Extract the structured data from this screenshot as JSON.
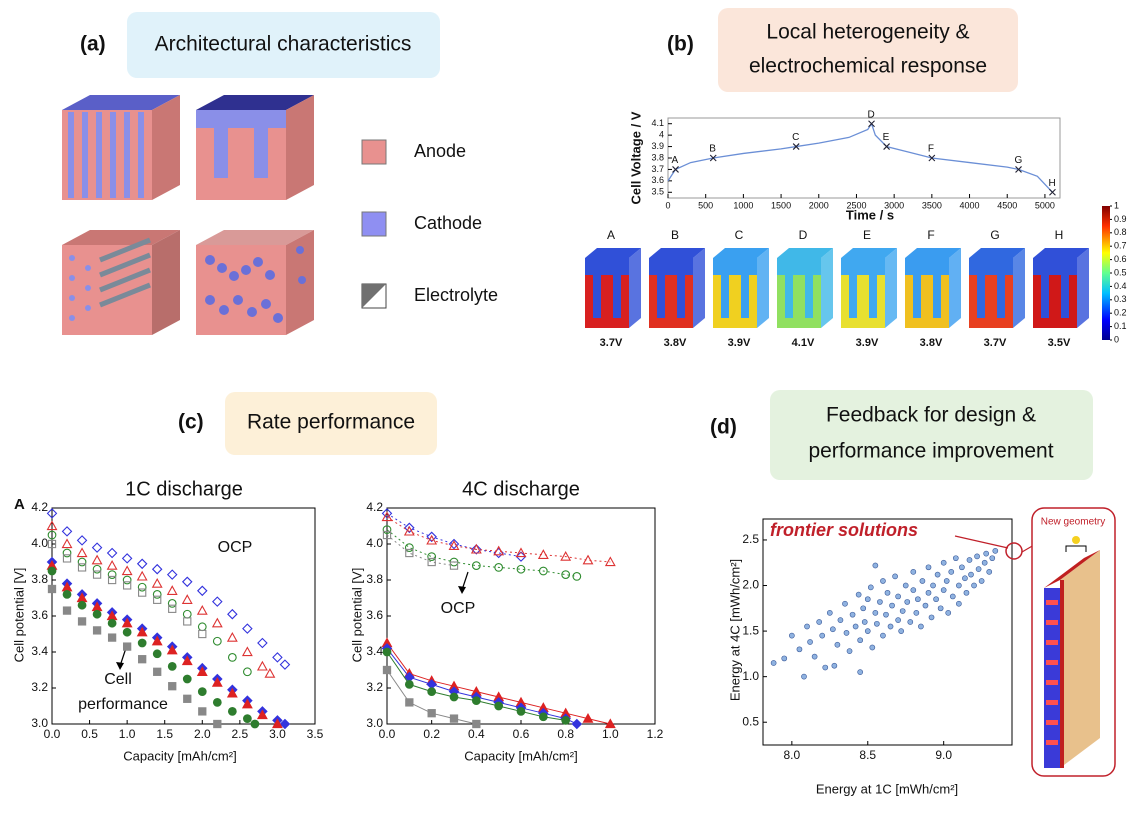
{
  "panels": [
    {
      "label": "(a)",
      "heading": [
        "Architectural characteristics"
      ]
    },
    {
      "label": "(b)",
      "heading": [
        "Local heterogeneity &",
        "electrochemical response"
      ]
    },
    {
      "label": "(c)",
      "heading": [
        "Rate performance"
      ]
    },
    {
      "label": "(d)",
      "heading": [
        "Feedback for design &",
        "performance improvement"
      ]
    }
  ],
  "legend": [
    {
      "name": "Anode",
      "color": "#e8918f"
    },
    {
      "name": "Cathode",
      "color": "#8f8ff2"
    },
    {
      "name": "Electrolyte",
      "color": "#707070"
    }
  ],
  "snapshots": {
    "labels": [
      "A",
      "B",
      "C",
      "D",
      "E",
      "F",
      "G",
      "H"
    ],
    "voltages": [
      "3.7V",
      "3.8V",
      "3.9V",
      "4.1V",
      "3.9V",
      "3.8V",
      "3.7V",
      "3.5V"
    ],
    "colorbar_ticks": [
      0,
      0.1,
      0.2,
      0.3,
      0.4,
      0.5,
      0.6,
      0.7,
      0.8,
      0.9,
      1
    ]
  },
  "new_geometry": "New geometry",
  "chart_data": [
    {
      "type": "line",
      "xlabel": "Time / s",
      "ylabel": "Cell Voltage / V",
      "xlim": [
        0,
        5200
      ],
      "xticks": [
        0,
        500,
        1000,
        1500,
        2000,
        2500,
        3000,
        3500,
        4000,
        4500,
        5000
      ],
      "ylim": [
        3.45,
        4.15
      ],
      "yticks": [
        3.5,
        3.6,
        3.7,
        3.8,
        3.9,
        4,
        4.1
      ],
      "series": [
        {
          "color": "#6b8fd6",
          "x": [
            0,
            100,
            300,
            600,
            1000,
            1500,
            1700,
            2000,
            2400,
            2650,
            2700,
            2750,
            2900,
            3200,
            3500,
            4000,
            4500,
            4650,
            4900,
            5100
          ],
          "values": [
            3.6,
            3.7,
            3.76,
            3.8,
            3.84,
            3.88,
            3.9,
            3.93,
            3.98,
            4.05,
            4.1,
            4.0,
            3.9,
            3.85,
            3.8,
            3.76,
            3.72,
            3.7,
            3.64,
            3.5
          ]
        }
      ],
      "points": {
        "labels": [
          "A",
          "B",
          "C",
          "D",
          "E",
          "F",
          "G",
          "H"
        ],
        "x": [
          100,
          600,
          1700,
          2700,
          2900,
          3500,
          4650,
          5100
        ],
        "values": [
          3.7,
          3.8,
          3.9,
          4.1,
          3.9,
          3.8,
          3.7,
          3.5
        ]
      }
    },
    {
      "type": "scatter",
      "title": "1C discharge",
      "panel_letter": "A",
      "xlabel": "Capacity [mAh/cm²]",
      "ylabel": "Cell potential [V]",
      "annotations": [
        "OCP",
        "Cell",
        "performance"
      ],
      "xlim": [
        0,
        3.5
      ],
      "xticks": [
        {
          "value": 0,
          "label": "0.0"
        },
        0.5,
        {
          "value": 1,
          "label": "1.0"
        },
        1.5,
        {
          "value": 2,
          "label": "2.0"
        },
        2.5,
        {
          "value": 3,
          "label": "3.0"
        },
        3.5
      ],
      "ylim": [
        3.0,
        4.2
      ],
      "yticks": [
        {
          "value": 3,
          "label": "3.0"
        },
        3.2,
        3.4,
        3.6,
        3.8,
        {
          "value": 4,
          "label": "4.0"
        },
        4.2
      ],
      "series": [
        {
          "color": "#3333dd",
          "marker": "diamond",
          "filled": false,
          "x": [
            0,
            0.2,
            0.4,
            0.6,
            0.8,
            1.0,
            1.2,
            1.4,
            1.6,
            1.8,
            2.0,
            2.2,
            2.4,
            2.6,
            2.8,
            3.0,
            3.1
          ],
          "values": [
            4.17,
            4.07,
            4.02,
            3.98,
            3.95,
            3.92,
            3.89,
            3.86,
            3.83,
            3.79,
            3.74,
            3.68,
            3.61,
            3.53,
            3.45,
            3.37,
            3.33
          ]
        },
        {
          "color": "#dd3333",
          "marker": "triangle",
          "filled": false,
          "x": [
            0,
            0.2,
            0.4,
            0.6,
            0.8,
            1.0,
            1.2,
            1.4,
            1.6,
            1.8,
            2.0,
            2.2,
            2.4,
            2.6,
            2.8,
            2.9
          ],
          "values": [
            4.1,
            4.0,
            3.95,
            3.91,
            3.88,
            3.85,
            3.82,
            3.78,
            3.74,
            3.69,
            3.63,
            3.56,
            3.48,
            3.4,
            3.32,
            3.28
          ]
        },
        {
          "color": "#2e8b2e",
          "marker": "circle",
          "filled": false,
          "x": [
            0,
            0.2,
            0.4,
            0.6,
            0.8,
            1.0,
            1.2,
            1.4,
            1.6,
            1.8,
            2.0,
            2.2,
            2.4,
            2.6
          ],
          "values": [
            4.05,
            3.95,
            3.9,
            3.86,
            3.83,
            3.8,
            3.76,
            3.72,
            3.67,
            3.61,
            3.54,
            3.46,
            3.37,
            3.29
          ]
        },
        {
          "color": "#888888",
          "marker": "square",
          "filled": false,
          "x": [
            0,
            0.2,
            0.4,
            0.6,
            0.8,
            1.0,
            1.2,
            1.4,
            1.6,
            1.8,
            2.0
          ],
          "values": [
            4.0,
            3.92,
            3.87,
            3.83,
            3.8,
            3.77,
            3.73,
            3.69,
            3.64,
            3.57,
            3.5
          ]
        },
        {
          "color": "#3333dd",
          "marker": "diamond",
          "filled": true,
          "x": [
            0,
            0.2,
            0.4,
            0.6,
            0.8,
            1.0,
            1.2,
            1.4,
            1.6,
            1.8,
            2.0,
            2.2,
            2.4,
            2.6,
            2.8,
            3.0,
            3.1
          ],
          "values": [
            3.9,
            3.78,
            3.72,
            3.67,
            3.62,
            3.58,
            3.53,
            3.48,
            3.43,
            3.37,
            3.31,
            3.25,
            3.19,
            3.13,
            3.07,
            3.02,
            3.0
          ]
        },
        {
          "color": "#dd2222",
          "marker": "triangle",
          "filled": true,
          "x": [
            0,
            0.2,
            0.4,
            0.6,
            0.8,
            1.0,
            1.2,
            1.4,
            1.6,
            1.8,
            2.0,
            2.2,
            2.4,
            2.6,
            2.8,
            3.0
          ],
          "values": [
            3.88,
            3.76,
            3.7,
            3.65,
            3.6,
            3.56,
            3.51,
            3.46,
            3.41,
            3.35,
            3.29,
            3.23,
            3.17,
            3.11,
            3.05,
            3.0
          ]
        },
        {
          "color": "#2e7d2e",
          "marker": "circle",
          "filled": true,
          "x": [
            0,
            0.2,
            0.4,
            0.6,
            0.8,
            1.0,
            1.2,
            1.4,
            1.6,
            1.8,
            2.0,
            2.2,
            2.4,
            2.6,
            2.7
          ],
          "values": [
            3.85,
            3.72,
            3.66,
            3.61,
            3.56,
            3.51,
            3.45,
            3.39,
            3.32,
            3.25,
            3.18,
            3.12,
            3.07,
            3.03,
            3.0
          ]
        },
        {
          "color": "#888888",
          "marker": "square",
          "filled": true,
          "x": [
            0,
            0.2,
            0.4,
            0.6,
            0.8,
            1.0,
            1.2,
            1.4,
            1.6,
            1.8,
            2.0,
            2.2
          ],
          "values": [
            3.75,
            3.63,
            3.57,
            3.52,
            3.48,
            3.43,
            3.36,
            3.29,
            3.21,
            3.14,
            3.07,
            3.0
          ]
        }
      ]
    },
    {
      "type": "scatter",
      "title": "4C discharge",
      "xlabel": "Capacity [mAh/cm²]",
      "ylabel": "Cell potential [V]",
      "annotations": [
        "OCP"
      ],
      "connect": true,
      "xlim": [
        0,
        1.2
      ],
      "xticks": [
        {
          "value": 0,
          "label": "0.0"
        },
        0.2,
        0.4,
        0.6,
        0.8,
        {
          "value": 1,
          "label": "1.0"
        },
        1.2
      ],
      "ylim": [
        3.0,
        4.2
      ],
      "yticks": [
        {
          "value": 3,
          "label": "3.0"
        },
        3.2,
        3.4,
        3.6,
        3.8,
        {
          "value": 4,
          "label": "4.0"
        },
        4.2
      ],
      "series": [
        {
          "color": "#3333dd",
          "marker": "diamond",
          "filled": false,
          "x": [
            0,
            0.1,
            0.2,
            0.3,
            0.4,
            0.5,
            0.6
          ],
          "values": [
            4.17,
            4.09,
            4.04,
            4.0,
            3.97,
            3.95,
            3.93
          ]
        },
        {
          "color": "#dd3333",
          "marker": "triangle",
          "filled": false,
          "x": [
            0,
            0.1,
            0.2,
            0.3,
            0.4,
            0.5,
            0.6,
            0.7,
            0.8,
            0.9,
            1.0
          ],
          "values": [
            4.15,
            4.07,
            4.02,
            3.99,
            3.97,
            3.96,
            3.95,
            3.94,
            3.93,
            3.91,
            3.9
          ]
        },
        {
          "color": "#2e8b2e",
          "marker": "circle",
          "filled": false,
          "x": [
            0,
            0.1,
            0.2,
            0.3,
            0.4,
            0.5,
            0.6,
            0.7,
            0.8,
            0.85
          ],
          "values": [
            4.08,
            3.98,
            3.93,
            3.9,
            3.88,
            3.87,
            3.86,
            3.85,
            3.83,
            3.82
          ]
        },
        {
          "color": "#888888",
          "marker": "square",
          "filled": false,
          "x": [
            0,
            0.1,
            0.2,
            0.3
          ],
          "values": [
            4.05,
            3.95,
            3.9,
            3.88
          ]
        },
        {
          "color": "#dd2222",
          "marker": "triangle",
          "filled": true,
          "x": [
            0,
            0.1,
            0.2,
            0.3,
            0.4,
            0.5,
            0.6,
            0.7,
            0.8,
            0.9,
            1.0
          ],
          "values": [
            3.45,
            3.28,
            3.24,
            3.21,
            3.18,
            3.15,
            3.12,
            3.09,
            3.06,
            3.03,
            3.0
          ]
        },
        {
          "color": "#3333dd",
          "marker": "diamond",
          "filled": true,
          "x": [
            0,
            0.1,
            0.2,
            0.3,
            0.4,
            0.5,
            0.6,
            0.7,
            0.8,
            0.85
          ],
          "values": [
            3.42,
            3.26,
            3.22,
            3.18,
            3.15,
            3.12,
            3.09,
            3.06,
            3.03,
            3.0
          ]
        },
        {
          "color": "#2e7d2e",
          "marker": "circle",
          "filled": true,
          "x": [
            0,
            0.1,
            0.2,
            0.3,
            0.4,
            0.5,
            0.6,
            0.7,
            0.8
          ],
          "values": [
            3.4,
            3.22,
            3.18,
            3.15,
            3.13,
            3.1,
            3.07,
            3.04,
            3.02
          ]
        },
        {
          "color": "#888888",
          "marker": "square",
          "filled": true,
          "x": [
            0,
            0.1,
            0.2,
            0.3,
            0.4
          ],
          "values": [
            3.3,
            3.12,
            3.06,
            3.03,
            3.0
          ]
        }
      ]
    },
    {
      "type": "scatter",
      "xlabel": "Energy at 1C [mWh/cm²]",
      "ylabel": "Energy at 4C [mWh/cm²]",
      "annotations": [
        "frontier solutions"
      ],
      "xlim": [
        7.81,
        9.45
      ],
      "xticks": [
        {
          "value": 8,
          "label": "8.0"
        },
        8.5,
        {
          "value": 9,
          "label": "9.0"
        }
      ],
      "ylim": [
        0.25,
        2.73
      ],
      "yticks": [
        0.5,
        {
          "value": 1,
          "label": "1.0"
        },
        1.5,
        {
          "value": 2,
          "label": "2.0"
        },
        2.5
      ],
      "series": [
        {
          "color": "#8fb2e0",
          "marker": "circle",
          "filled": true,
          "x": [
            7.95,
            8.0,
            8.05,
            8.1,
            8.12,
            8.15,
            8.18,
            8.2,
            8.22,
            8.25,
            8.27,
            8.3,
            8.32,
            8.35,
            8.36,
            8.38,
            8.4,
            8.42,
            8.44,
            8.45,
            8.47,
            8.48,
            8.5,
            8.5,
            8.52,
            8.53,
            8.55,
            8.56,
            8.58,
            8.6,
            8.6,
            8.62,
            8.63,
            8.65,
            8.66,
            8.68,
            8.7,
            8.7,
            8.72,
            8.73,
            8.75,
            8.76,
            8.78,
            8.8,
            8.8,
            8.82,
            8.83,
            8.85,
            8.86,
            8.88,
            8.9,
            8.9,
            8.92,
            8.93,
            8.95,
            8.96,
            8.98,
            9.0,
            9.0,
            9.02,
            9.03,
            9.05,
            9.06,
            9.08,
            9.1,
            9.1,
            9.12,
            9.14,
            9.15,
            9.17,
            9.18,
            9.2,
            9.22,
            9.23,
            9.25,
            9.27,
            9.28,
            9.3,
            9.32,
            9.34,
            7.88,
            8.08,
            8.28,
            8.55,
            8.45
          ],
          "values": [
            1.2,
            1.45,
            1.3,
            1.55,
            1.38,
            1.22,
            1.6,
            1.45,
            1.1,
            1.7,
            1.52,
            1.35,
            1.62,
            1.8,
            1.48,
            1.28,
            1.68,
            1.55,
            1.9,
            1.4,
            1.75,
            1.6,
            1.5,
            1.85,
            1.98,
            1.32,
            1.7,
            1.58,
            1.82,
            2.05,
            1.45,
            1.68,
            1.92,
            1.55,
            1.78,
            2.1,
            1.62,
            1.88,
            1.5,
            1.72,
            2.0,
            1.82,
            1.6,
            1.95,
            2.15,
            1.7,
            1.85,
            1.55,
            2.05,
            1.78,
            1.92,
            2.2,
            1.65,
            2.0,
            1.85,
            2.12,
            1.75,
            1.95,
            2.25,
            2.05,
            1.7,
            2.15,
            1.88,
            2.3,
            2.0,
            1.8,
            2.2,
            2.08,
            1.92,
            2.28,
            2.12,
            2.0,
            2.32,
            2.18,
            2.05,
            2.25,
            2.35,
            2.15,
            2.3,
            2.38,
            1.15,
            1.0,
            1.12,
            2.22,
            1.05
          ]
        }
      ]
    }
  ]
}
